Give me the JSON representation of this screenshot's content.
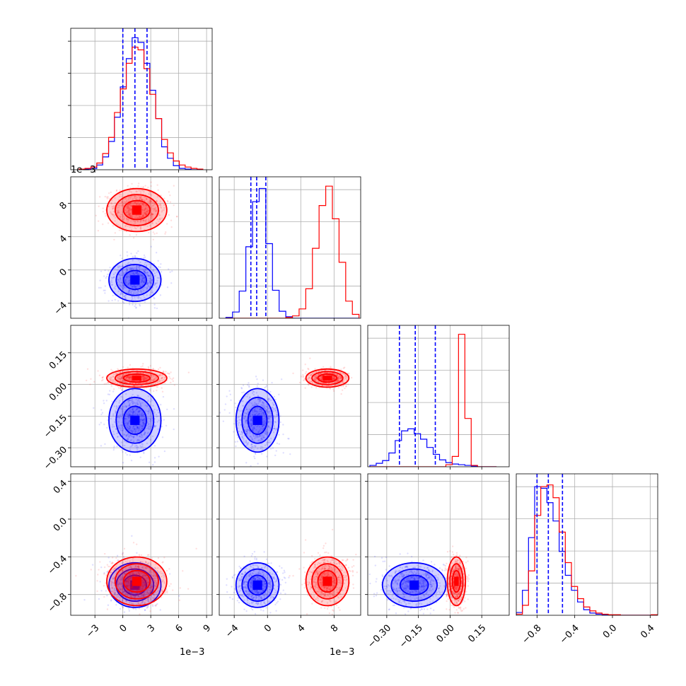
{
  "chart_data": {
    "type": "corner",
    "colors": {
      "blue": "#0000ff",
      "red": "#ff0000",
      "grid": "#b0b0b0"
    },
    "parameters": [
      {
        "name": "",
        "range": [
          -5.6,
          9.6
        ],
        "ticks": [
          -3,
          0,
          3,
          6,
          9
        ],
        "tick_labels": [
          "−3",
          "0",
          "3",
          "6",
          "9"
        ],
        "offset_label": "1e−3"
      },
      {
        "name": "",
        "range": [
          -5.8,
          11.2
        ],
        "ticks": [
          -4,
          0,
          4,
          8
        ],
        "tick_labels": [
          "−4",
          "0",
          "4",
          "8"
        ],
        "offset_label": "1e−3"
      },
      {
        "name": "",
        "range": [
          -0.39,
          0.28
        ],
        "ticks": [
          -0.3,
          -0.15,
          0.0,
          0.15
        ],
        "tick_labels": [
          "−0.30",
          "−0.15",
          "0.00",
          "0.15"
        ],
        "offset_label": ""
      },
      {
        "name": "",
        "range": [
          -1.02,
          0.48
        ],
        "ticks": [
          -0.8,
          -0.4,
          0.0,
          0.4
        ],
        "tick_labels": [
          "−0.8",
          "−0.4",
          "0.0",
          "0.4"
        ],
        "offset_label": ""
      }
    ],
    "series": [
      {
        "color": "blue",
        "means": [
          1.3,
          -1.2,
          -0.17,
          -0.7
        ],
        "sds": [
          1.3,
          1.2,
          0.07,
          0.11
        ],
        "quantiles": [
          [
            0.0,
            1.3,
            2.6
          ],
          [
            -2.0,
            -1.3,
            -0.2
          ],
          [
            -0.24,
            -0.165,
            -0.07
          ],
          [
            -0.8,
            -0.68,
            -0.53
          ]
        ]
      },
      {
        "color": "red",
        "means": [
          1.5,
          7.2,
          0.03,
          -0.66
        ],
        "sds": [
          1.5,
          1.2,
          0.02,
          0.12
        ],
        "quantiles": []
      }
    ],
    "histograms": [
      {
        "bins": [
          -4.7,
          -4.07,
          -3.43,
          -2.8,
          -2.17,
          -1.53,
          -0.9,
          -0.27,
          0.37,
          1.0,
          1.63,
          2.27,
          2.9,
          3.53,
          4.17,
          4.8,
          5.43,
          6.07,
          6.7,
          7.33,
          7.97,
          8.6
        ],
        "blue": [
          0,
          1,
          2,
          7,
          19,
          42,
          78,
          123,
          165,
          196,
          189,
          158,
          118,
          76,
          34,
          17,
          6,
          2,
          1,
          0,
          0
        ],
        "red": [
          1,
          2,
          4,
          10,
          24,
          48,
          85,
          120,
          158,
          182,
          178,
          150,
          112,
          76,
          45,
          25,
          13,
          7,
          4,
          2,
          1
        ],
        "ymax": 210
      },
      {
        "bins": [
          -5.0,
          -4.2,
          -3.4,
          -2.6,
          -1.8,
          -1.0,
          -0.2,
          0.6,
          1.4,
          2.2,
          3.0,
          3.8,
          4.6,
          5.4,
          6.2,
          7.0,
          7.8,
          8.6,
          9.4,
          10.2,
          11.0
        ],
        "blue": [
          1,
          8,
          35,
          92,
          150,
          167,
          96,
          36,
          9,
          2,
          0,
          0,
          0,
          0,
          0,
          0,
          0,
          0,
          0,
          0
        ],
        "red": [
          0,
          0,
          0,
          0,
          0,
          0,
          0,
          0,
          0,
          1,
          3,
          12,
          38,
          90,
          145,
          170,
          128,
          72,
          22,
          5
        ],
        "ymax": 182
      },
      {
        "bins": [
          -0.38,
          -0.35,
          -0.32,
          -0.29,
          -0.26,
          -0.23,
          -0.2,
          -0.17,
          -0.14,
          -0.11,
          -0.08,
          -0.05,
          -0.02,
          0.01,
          0.04,
          0.07,
          0.1,
          0.13,
          0.16,
          0.19,
          0.22
        ],
        "blue": [
          2,
          5,
          9,
          20,
          38,
          52,
          55,
          48,
          40,
          28,
          18,
          10,
          6,
          4,
          3,
          2,
          1,
          0,
          0,
          0
        ],
        "red": [
          0,
          0,
          0,
          0,
          0,
          0,
          0,
          0,
          0,
          0,
          0,
          0,
          3,
          15,
          192,
          70,
          2,
          0,
          0,
          0
        ],
        "ymax": 205
      },
      {
        "bins": [
          -1.02,
          -0.955,
          -0.89,
          -0.825,
          -0.76,
          -0.695,
          -0.63,
          -0.565,
          -0.5,
          -0.435,
          -0.37,
          -0.305,
          -0.24,
          -0.175,
          -0.11,
          -0.045,
          0.02,
          0.085,
          0.15,
          0.215,
          0.28,
          0.345,
          0.41,
          0.475
        ],
        "blue": [
          5,
          45,
          140,
          232,
          229,
          203,
          170,
          115,
          72,
          45,
          24,
          10,
          4,
          2,
          1,
          0,
          0,
          0,
          0,
          0,
          0,
          0,
          0
        ],
        "red": [
          2,
          18,
          80,
          180,
          232,
          235,
          212,
          150,
          95,
          52,
          30,
          15,
          8,
          4,
          2,
          1,
          1,
          0,
          0,
          0,
          0,
          0,
          1
        ],
        "ymax": 255
      }
    ],
    "title": "",
    "grid": true
  }
}
